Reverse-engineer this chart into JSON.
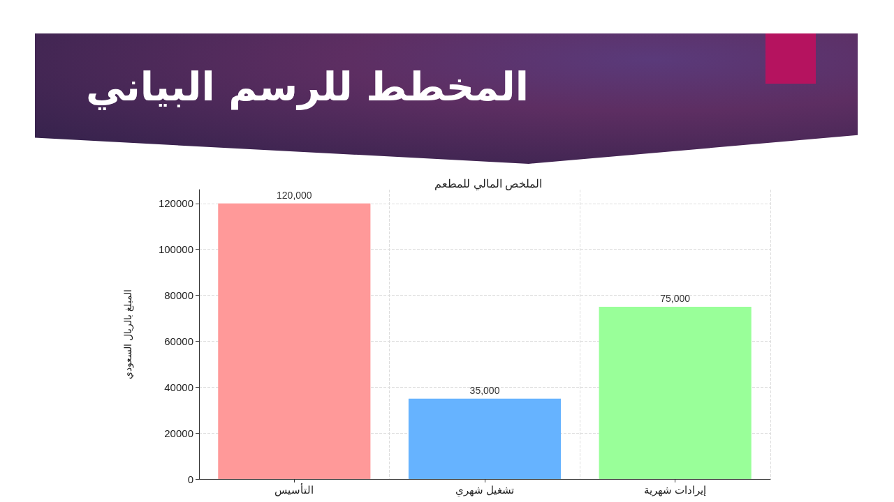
{
  "chart_data": {
    "type": "bar",
    "title": "المخطط للرسم البياني",
    "subtitle": "الملخص المالي للمطعم",
    "ylabel": "المبلغ بالريال السعودي",
    "categories": [
      "التأسيس",
      "تشغيل شهري",
      "إيرادات شهرية"
    ],
    "values": [
      120000,
      35000,
      75000
    ],
    "colors": [
      "#ff9999",
      "#66b3ff",
      "#99ff99"
    ],
    "value_labels": [
      "120,000",
      "35,000",
      "75,000"
    ],
    "ylim": [
      0,
      126000
    ],
    "yticks": [
      0,
      20000,
      40000,
      60000,
      80000,
      100000,
      120000
    ],
    "grid": true
  }
}
